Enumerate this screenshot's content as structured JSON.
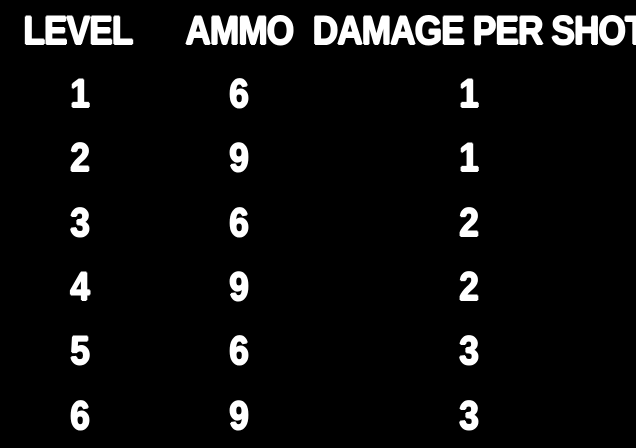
{
  "colors": {
    "background": "#000000",
    "text": "#ffffff"
  },
  "table": {
    "columns": [
      "LEVEL",
      "AMMO",
      "DAMAGE PER SHOT"
    ],
    "rows": [
      {
        "level": "1",
        "ammo": "6",
        "damage_per_shot": "1"
      },
      {
        "level": "2",
        "ammo": "9",
        "damage_per_shot": "1"
      },
      {
        "level": "3",
        "ammo": "6",
        "damage_per_shot": "2"
      },
      {
        "level": "4",
        "ammo": "9",
        "damage_per_shot": "2"
      },
      {
        "level": "5",
        "ammo": "6",
        "damage_per_shot": "3"
      },
      {
        "level": "6",
        "ammo": "9",
        "damage_per_shot": "3"
      }
    ]
  }
}
